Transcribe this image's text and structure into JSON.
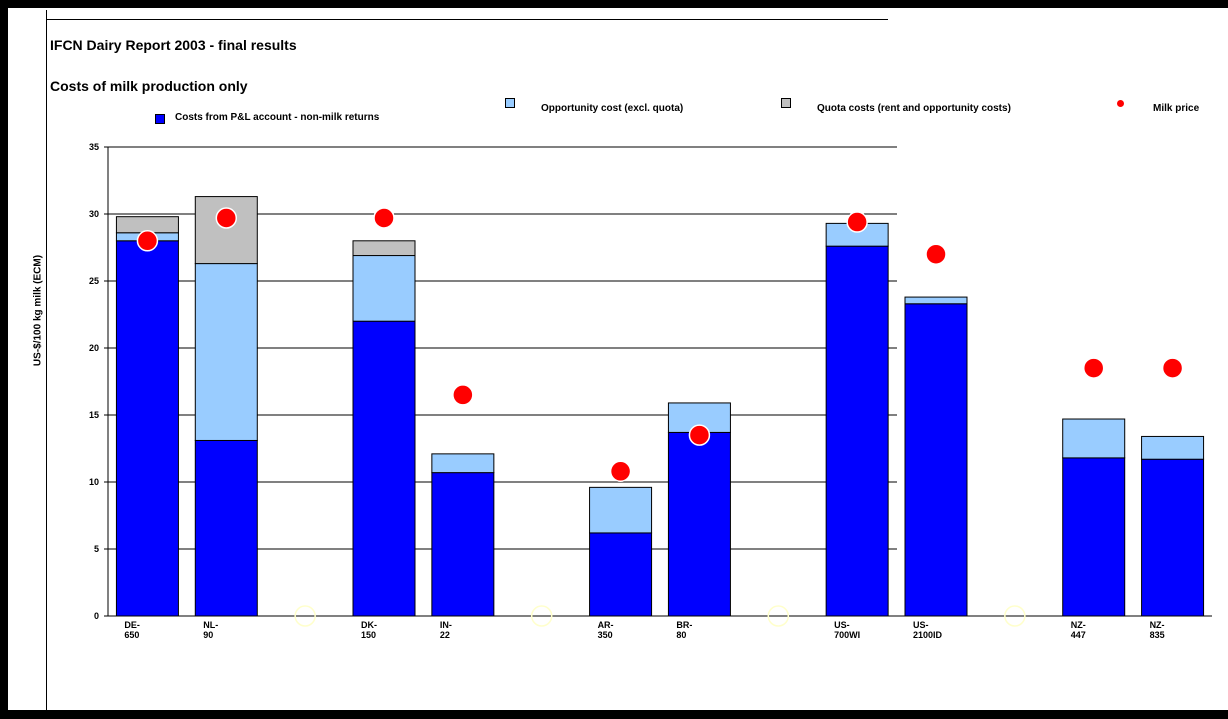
{
  "title": "IFCN Dairy Report 2003 - final results",
  "subtitle": "Costs of milk production only",
  "legend": [
    {
      "label": "Costs from P&L account - non-milk returns",
      "color": "#0000ff",
      "marker": "square"
    },
    {
      "label": "Opportunity cost (excl. quota)",
      "color": "#99ccff",
      "marker": "square"
    },
    {
      "label": "Quota costs (rent and opportunity costs)",
      "color": "#c0c0c0",
      "marker": "square"
    },
    {
      "label": "Milk price",
      "color": "#ff0000",
      "marker": "circle"
    }
  ],
  "chart_data": {
    "type": "bar",
    "stacked": true,
    "ylabel": "US-$/100 kg milk (ECM)",
    "xlabel": "",
    "ylim": [
      0,
      35
    ],
    "yticks": [
      0,
      5,
      10,
      15,
      20,
      25,
      30,
      35
    ],
    "grid": true,
    "legend_position": "top",
    "categories": [
      "DE-\n650",
      "NL-\n90",
      "",
      "DK-\n150",
      "IN-\n22",
      "",
      "AR-\n350",
      "BR-\n80",
      "",
      "US-\n700WI",
      "US-\n2100ID",
      "",
      "NZ-\n447",
      "NZ-\n835"
    ],
    "series": [
      {
        "name": "Costs from P&L account - non-milk returns",
        "color": "#0000ff",
        "values": [
          28.0,
          13.1,
          null,
          22.0,
          10.7,
          null,
          6.2,
          13.7,
          null,
          27.6,
          23.3,
          null,
          11.8,
          11.7
        ]
      },
      {
        "name": "Opportunity cost (excl. quota)",
        "color": "#99ccff",
        "values": [
          0.6,
          13.2,
          null,
          4.9,
          1.4,
          null,
          3.4,
          2.2,
          null,
          1.7,
          0.5,
          null,
          2.9,
          1.7
        ]
      },
      {
        "name": "Quota costs (rent and opportunity costs)",
        "color": "#c0c0c0",
        "values": [
          1.2,
          5.0,
          null,
          1.1,
          0,
          null,
          0,
          0,
          null,
          0,
          0,
          null,
          0,
          0
        ]
      }
    ],
    "milk_price": {
      "name": "Milk price",
      "color": "#ff0000",
      "values": [
        28.0,
        29.7,
        null,
        29.7,
        16.5,
        null,
        10.8,
        13.5,
        null,
        29.4,
        27.0,
        null,
        18.5,
        18.5
      ]
    }
  }
}
